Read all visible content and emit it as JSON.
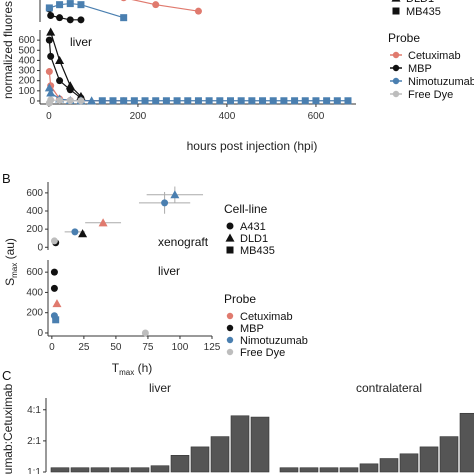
{
  "panels": {
    "a": {
      "label": "",
      "ylabel": "normalized fluores",
      "xlabel": "hours post injection (hpi)"
    },
    "b": {
      "label": "B"
    },
    "c": {
      "label": "C"
    }
  },
  "legends": {
    "top_cellline": [
      {
        "marker": "triangle",
        "label": "DLD1"
      },
      {
        "marker": "square",
        "label": "MB435"
      }
    ],
    "probe_title": "Probe",
    "probe_a": [
      {
        "label": "Cetuximab",
        "color": "#e07a6e"
      },
      {
        "label": "MBP",
        "color": "#111111"
      },
      {
        "label": "Nimotuzumab",
        "color": "#4a7fb0"
      },
      {
        "label": "Free Dye",
        "color": "#bdbdbd"
      }
    ],
    "cellline_title": "Cell-line",
    "cellline_b": [
      {
        "marker": "circle",
        "label": "A431"
      },
      {
        "marker": "triangle",
        "label": "DLD1"
      },
      {
        "marker": "square",
        "label": "MB435"
      }
    ],
    "probe_b": [
      {
        "label": "Cetuximab",
        "color": "#e07a6e"
      },
      {
        "label": "MBP",
        "color": "#111111"
      },
      {
        "label": "Nimotuzumab",
        "color": "#4a7fb0"
      },
      {
        "label": "Free Dye",
        "color": "#bdbdbd"
      }
    ]
  },
  "chart_data": [
    {
      "id": "A-upper",
      "type": "line",
      "x_range": [
        -20,
        690
      ],
      "series": [
        {
          "probe": "Cetuximab",
          "x": [
            168,
            240,
            336
          ],
          "y": [
            0.92,
            0.6,
            0.3
          ]
        },
        {
          "probe": "MBP",
          "x": [
            1,
            4,
            24,
            48,
            72
          ],
          "y": [
            0.4,
            0.1,
            0.0,
            -0.1,
            -0.1
          ]
        },
        {
          "probe": "Nimotuzumab",
          "x": [
            1,
            24,
            48,
            72,
            168
          ],
          "y": [
            0.45,
            0.6,
            0.65,
            0.6,
            0.0
          ]
        }
      ]
    },
    {
      "id": "A-liver",
      "type": "line",
      "annotation": "liver",
      "ylabel": "normalized fluores",
      "xlabel": "hours post injection (hpi)",
      "x_ticks": [
        0,
        200,
        400,
        600
      ],
      "y_ticks": [
        0,
        100,
        200,
        300,
        400,
        500,
        600
      ],
      "x_range": [
        -20,
        690
      ],
      "y_range": [
        -30,
        700
      ],
      "series": [
        {
          "probe": "Cetuximab",
          "x": [
            1,
            4,
            24,
            48,
            72,
            168
          ],
          "y": [
            290,
            150,
            20,
            5,
            3,
            2
          ]
        },
        {
          "probe": "MBP",
          "x": [
            1,
            4,
            24,
            48,
            72
          ],
          "y": [
            600,
            440,
            200,
            110,
            30
          ]
        },
        {
          "probe": "DLD1-MBP",
          "x": [
            4,
            24,
            48,
            72
          ],
          "y": [
            680,
            400,
            150,
            45
          ]
        },
        {
          "probe": "Nimotuzumab",
          "x": [
            1,
            4,
            24,
            48,
            72,
            96,
            120,
            144,
            168,
            192,
            216,
            240,
            264,
            288,
            312,
            336,
            360,
            384,
            408,
            432,
            456,
            480,
            504,
            528,
            552,
            576,
            600,
            624,
            648,
            672
          ],
          "y": [
            130,
            80,
            20,
            5,
            3,
            2,
            2,
            2,
            2,
            2,
            2,
            2,
            2,
            2,
            2,
            2,
            2,
            2,
            2,
            2,
            2,
            2,
            2,
            2,
            2,
            2,
            2,
            2,
            2,
            2
          ]
        },
        {
          "probe": "Free Dye",
          "x": [
            1,
            4,
            24,
            48,
            72
          ],
          "y": [
            -20,
            10,
            5,
            3,
            2
          ]
        }
      ]
    },
    {
      "id": "B-xenograft",
      "type": "scatter",
      "annotation": "xenograft",
      "ylabel": "S",
      "ylabel_sub": "max",
      "ylabel_unit": "(au)",
      "y_ticks": [
        0,
        200,
        400,
        600
      ],
      "x_range": [
        -3,
        125
      ],
      "y_range": [
        -30,
        720
      ],
      "points": [
        {
          "probe": "MBP",
          "cell": "A431",
          "x": 3,
          "y": 50
        },
        {
          "probe": "Free Dye",
          "cell": "A431",
          "x": 2,
          "y": 70
        },
        {
          "probe": "Nimotuzumab",
          "cell": "A431",
          "x": 18,
          "y": 170,
          "xerr": 8
        },
        {
          "probe": "MBP",
          "cell": "DLD1",
          "x": 24,
          "y": 150
        },
        {
          "probe": "Cetuximab",
          "cell": "DLD1",
          "x": 40,
          "y": 270,
          "xerr": 14
        },
        {
          "probe": "Nimotuzumab",
          "cell": "A431",
          "x": 88,
          "y": 490,
          "xerr": 20,
          "yerr": 120
        },
        {
          "probe": "Nimotuzumab",
          "cell": "DLD1",
          "x": 96,
          "y": 580,
          "xerr": 22,
          "yerr": 90
        }
      ]
    },
    {
      "id": "B-liver",
      "type": "scatter",
      "annotation": "liver",
      "xlabel": "T",
      "xlabel_sub": "max",
      "xlabel_unit": "(h)",
      "x_ticks": [
        0,
        25,
        50,
        75,
        100,
        125
      ],
      "y_ticks": [
        0,
        200,
        400,
        600
      ],
      "x_range": [
        -3,
        125
      ],
      "y_range": [
        -30,
        720
      ],
      "points": [
        {
          "probe": "MBP",
          "cell": "A431",
          "x": 2,
          "y": 600
        },
        {
          "probe": "MBP",
          "cell": "A431",
          "x": 2,
          "y": 440
        },
        {
          "probe": "Cetuximab",
          "cell": "DLD1",
          "x": 4,
          "y": 290
        },
        {
          "probe": "Nimotuzumab",
          "cell": "A431",
          "x": 2,
          "y": 170
        },
        {
          "probe": "Nimotuzumab",
          "cell": "MB435",
          "x": 3,
          "y": 130
        },
        {
          "probe": "Free Dye",
          "cell": "A431",
          "x": 73,
          "y": 0
        }
      ]
    },
    {
      "id": "C",
      "type": "bar",
      "ylabel": "cumab:Cetuximab",
      "y_ticks": [
        "1:1",
        "2:1",
        "4:1"
      ],
      "y_tick_values": [
        1,
        2,
        4
      ],
      "y_range": [
        1,
        5.2
      ],
      "facets": [
        {
          "title": "liver",
          "values": [
            1.1,
            1.1,
            1.1,
            1.1,
            1.1,
            1.15,
            1.45,
            1.75,
            2.2,
            3.5,
            3.4
          ]
        },
        {
          "title": "contralateral",
          "values": [
            1.1,
            1.1,
            1.1,
            1.1,
            1.2,
            1.35,
            1.5,
            1.75,
            2.2,
            3.7,
            3.7
          ]
        }
      ]
    }
  ]
}
